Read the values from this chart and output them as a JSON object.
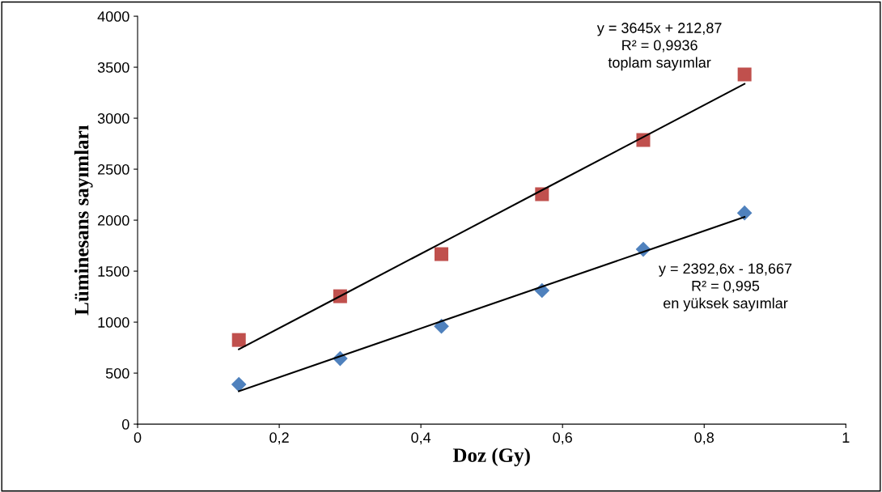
{
  "chart_data": {
    "type": "scatter",
    "xlabel": "Doz (Gy)",
    "ylabel": "Lüminesans sayımları",
    "x": [
      0.143,
      0.286,
      0.429,
      0.571,
      0.714,
      0.857
    ],
    "series": [
      {
        "color": "#c0504d",
        "marker": "square",
        "values": [
          825,
          1254,
          1667,
          2254,
          2786,
          3429
        ]
      },
      {
        "color": "#4f81bd",
        "marker": "diamond",
        "values": [
          389,
          643,
          960,
          1310,
          1714,
          2071
        ]
      },
      {
        "type": "line",
        "color": "#000000",
        "marker": "none",
        "values": [
          734,
          1255,
          1776,
          2294,
          2815,
          3337
        ]
      },
      {
        "type": "line",
        "color": "#000000",
        "marker": "none",
        "values": [
          323,
          666,
          1008,
          1348,
          1690,
          2032
        ]
      }
    ],
    "xlim": [
      0,
      1
    ],
    "ylim": [
      0,
      4000
    ],
    "xticks": [
      0,
      {
        "value": 0.2,
        "label": "0,2"
      },
      {
        "value": 0.4,
        "label": "0,4"
      },
      {
        "value": 0.6,
        "label": "0,6"
      },
      {
        "value": 0.8,
        "label": "0,8"
      },
      1
    ],
    "yticks": [
      0,
      500,
      1000,
      1500,
      2000,
      2500,
      3000,
      3500,
      4000
    ],
    "grid": false,
    "legend": false,
    "annotations": [
      "y = 3645x + 212,87\nR² = 0,9936\ntoplam sayımlar",
      "y = 2392,6x - 18,667\nR² = 0,995\nen yüksek sayımlar"
    ]
  }
}
